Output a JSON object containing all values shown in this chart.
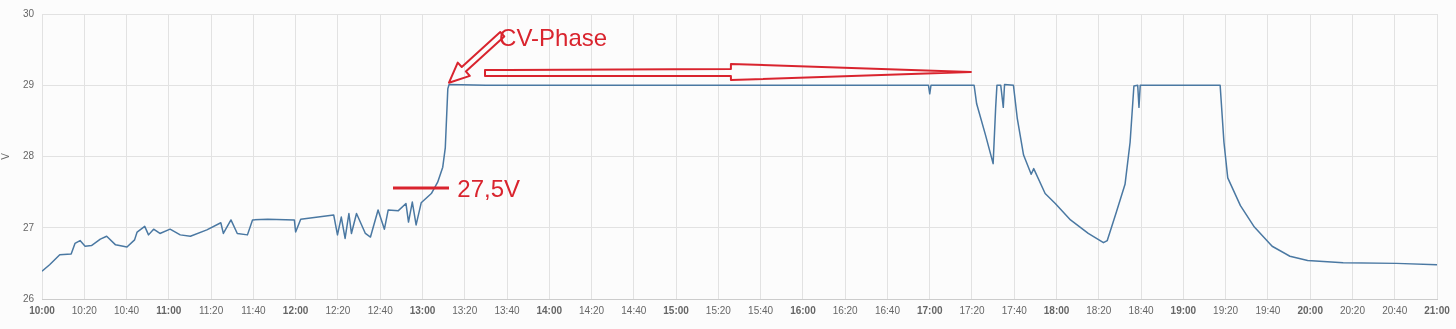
{
  "chart_data": {
    "type": "line",
    "ylabel": "V",
    "xlim": [
      10,
      21
    ],
    "ylim": [
      26,
      30
    ],
    "yticks": [
      26,
      27,
      28,
      29,
      30
    ],
    "xticks": [
      {
        "value": 10,
        "label": "10:00"
      },
      {
        "value": 10.3333,
        "label": "10:20"
      },
      {
        "value": 10.6667,
        "label": "10:40"
      },
      {
        "value": 11,
        "label": "11:00"
      },
      {
        "value": 11.3333,
        "label": "11:20"
      },
      {
        "value": 11.6667,
        "label": "11:40"
      },
      {
        "value": 12,
        "label": "12:00"
      },
      {
        "value": 12.3333,
        "label": "12:20"
      },
      {
        "value": 12.6667,
        "label": "12:40"
      },
      {
        "value": 13,
        "label": "13:00"
      },
      {
        "value": 13.3333,
        "label": "13:20"
      },
      {
        "value": 13.6667,
        "label": "13:40"
      },
      {
        "value": 14,
        "label": "14:00"
      },
      {
        "value": 14.3333,
        "label": "14:20"
      },
      {
        "value": 14.6667,
        "label": "14:40"
      },
      {
        "value": 15,
        "label": "15:00"
      },
      {
        "value": 15.3333,
        "label": "15:20"
      },
      {
        "value": 15.6667,
        "label": "15:40"
      },
      {
        "value": 16,
        "label": "16:00"
      },
      {
        "value": 16.3333,
        "label": "16:20"
      },
      {
        "value": 16.6667,
        "label": "16:40"
      },
      {
        "value": 17,
        "label": "17:00"
      },
      {
        "value": 17.3333,
        "label": "17:20"
      },
      {
        "value": 17.6667,
        "label": "17:40"
      },
      {
        "value": 18,
        "label": "18:00"
      },
      {
        "value": 18.3333,
        "label": "18:20"
      },
      {
        "value": 18.6667,
        "label": "18:40"
      },
      {
        "value": 19,
        "label": "19:00"
      },
      {
        "value": 19.3333,
        "label": "19:20"
      },
      {
        "value": 19.6667,
        "label": "19:40"
      },
      {
        "value": 20,
        "label": "20:00"
      },
      {
        "value": 20.3333,
        "label": "20:20"
      },
      {
        "value": 20.6667,
        "label": "20:40"
      },
      {
        "value": 21,
        "label": "21:00"
      }
    ],
    "grid": true,
    "legend": false,
    "marker": "none",
    "line_style": "solid",
    "series": [
      {
        "color": "#4a78a2",
        "x": [
          10,
          10.06,
          10.14,
          10.23,
          10.26,
          10.3,
          10.34,
          10.39,
          10.46,
          10.51,
          10.58,
          10.67,
          10.73,
          10.75,
          10.81,
          10.84,
          10.88,
          10.93,
          11.01,
          11.09,
          11.17,
          11.3,
          11.41,
          11.43,
          11.49,
          11.54,
          11.62,
          11.66,
          11.78,
          11.99,
          12,
          12.04,
          12.3,
          12.33,
          12.36,
          12.39,
          12.42,
          12.44,
          12.48,
          12.55,
          12.59,
          12.65,
          12.7,
          12.73,
          12.81,
          12.87,
          12.89,
          12.92,
          12.95,
          12.99,
          13.07,
          13.12,
          13.16,
          13.18,
          13.2,
          13.21,
          13.5,
          14,
          14.5,
          15,
          15.5,
          16,
          16.5,
          16.99,
          17,
          17.01,
          17.35,
          17.37,
          17.44,
          17.5,
          17.52,
          17.53,
          17.56,
          17.58,
          17.59,
          17.66,
          17.69,
          17.74,
          17.8,
          17.82,
          17.91,
          17.99,
          18.11,
          18.25,
          18.37,
          18.4,
          18.47,
          18.54,
          18.58,
          18.61,
          18.64,
          18.65,
          18.66,
          19,
          19.29,
          19.32,
          19.35,
          19.45,
          19.56,
          19.7,
          19.84,
          19.98,
          20.26,
          20.68,
          21
        ],
        "values": [
          26.39,
          26.48,
          26.62,
          26.63,
          26.78,
          26.82,
          26.74,
          26.75,
          26.84,
          26.88,
          26.76,
          26.73,
          26.83,
          26.94,
          27.02,
          26.9,
          26.98,
          26.92,
          26.98,
          26.9,
          26.88,
          26.97,
          27.07,
          26.92,
          27.11,
          26.92,
          26.9,
          27.11,
          27.12,
          27.11,
          26.94,
          27.12,
          27.18,
          26.9,
          27.15,
          26.85,
          27.2,
          26.92,
          27.2,
          26.92,
          26.87,
          27.25,
          26.98,
          27.25,
          27.24,
          27.34,
          27.08,
          27.36,
          27.04,
          27.35,
          27.48,
          27.64,
          27.85,
          28.12,
          28.95,
          29.01,
          29,
          29,
          29,
          29,
          29,
          29,
          29,
          29,
          28.88,
          29,
          29,
          28.74,
          28.3,
          27.9,
          28.69,
          29,
          29,
          28.69,
          29.01,
          29,
          28.54,
          28.02,
          27.75,
          27.83,
          27.48,
          27.34,
          27.11,
          26.92,
          26.79,
          26.82,
          27.21,
          27.61,
          28.2,
          28.99,
          29,
          28.69,
          29,
          29,
          29,
          28.2,
          27.7,
          27.31,
          27.01,
          26.74,
          26.6,
          26.54,
          26.51,
          26.5,
          26.48
        ]
      }
    ],
    "annotations": [
      {
        "text": "CV-Phase",
        "x": 13.21,
        "y": 29.0
      },
      {
        "text": "27,5V",
        "x": 13.07,
        "y": 27.5
      }
    ]
  }
}
